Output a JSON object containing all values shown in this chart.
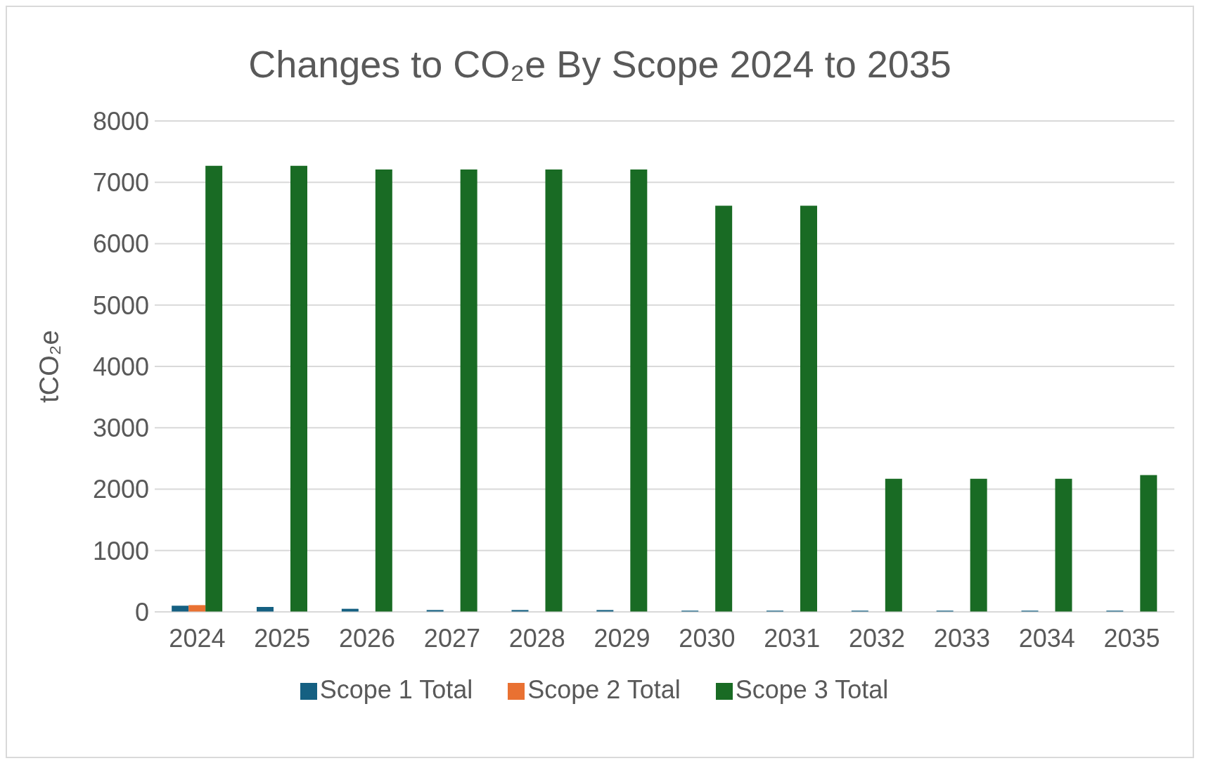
{
  "chart_data": {
    "type": "bar",
    "title": "Changes to CO₂e By Scope 2024 to 2035",
    "ylabel": "tCO₂e",
    "categories": [
      "2024",
      "2025",
      "2026",
      "2027",
      "2028",
      "2029",
      "2030",
      "2031",
      "2032",
      "2033",
      "2034",
      "2035"
    ],
    "series": [
      {
        "name": "Scope 1 Total",
        "color": "#156082",
        "values": [
          100,
          80,
          50,
          30,
          30,
          30,
          20,
          20,
          20,
          20,
          20,
          20
        ]
      },
      {
        "name": "Scope 2 Total",
        "color": "#e97132",
        "values": [
          110,
          0,
          0,
          0,
          0,
          0,
          0,
          0,
          0,
          0,
          0,
          0
        ]
      },
      {
        "name": "Scope 3 Total",
        "color": "#196b24",
        "values": [
          7270,
          7270,
          7210,
          7210,
          7210,
          7210,
          6620,
          6620,
          2170,
          2170,
          2170,
          2230
        ]
      }
    ],
    "ylim": [
      0,
      8000
    ],
    "yticks": [
      0,
      1000,
      2000,
      3000,
      4000,
      5000,
      6000,
      7000,
      8000
    ],
    "grid": "y",
    "legend": "bottom"
  }
}
